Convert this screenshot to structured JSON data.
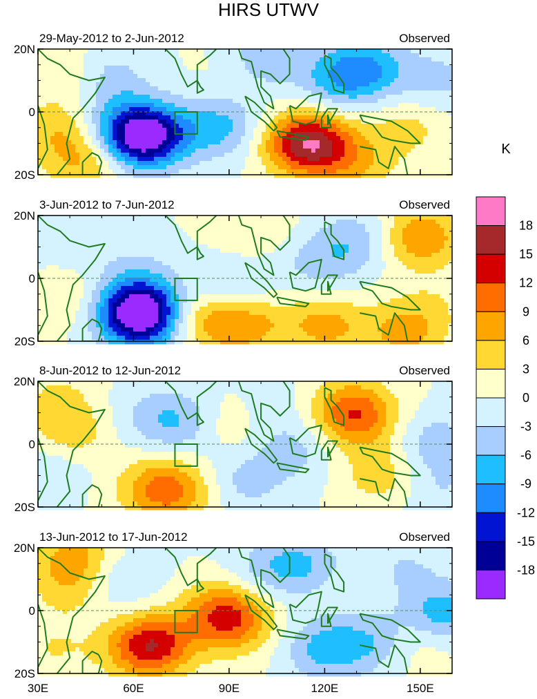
{
  "title": "HIRS UTWV",
  "units_label": "K",
  "panels": [
    {
      "date_label": "29-May-2012 to 2-Jun-2012",
      "type_label": "Observed",
      "blobs": [
        {
          "lon": 40,
          "lat": 12,
          "v": 4
        },
        {
          "lon": 36,
          "lat": -6,
          "v": 5
        },
        {
          "lon": 45,
          "lat": -16,
          "v": 6
        },
        {
          "lon": 54,
          "lat": -2,
          "v": -2
        },
        {
          "lon": 51,
          "lat": 11,
          "v": -5
        },
        {
          "lon": 63,
          "lat": -7,
          "v": -9
        },
        {
          "lon": 63,
          "lat": -8,
          "v": -14
        },
        {
          "lon": 87,
          "lat": -5,
          "v": -7
        },
        {
          "lon": 93,
          "lat": 15,
          "v": 2
        },
        {
          "lon": 100,
          "lat": 17,
          "v": -6
        },
        {
          "lon": 118,
          "lat": -10,
          "v": 9
        },
        {
          "lon": 112,
          "lat": -10,
          "v": 10
        },
        {
          "lon": 133,
          "lat": 14,
          "v": -8
        },
        {
          "lon": 124,
          "lat": 10,
          "v": -6
        },
        {
          "lon": 146,
          "lat": -5,
          "v": 4
        },
        {
          "lon": 155,
          "lat": 10,
          "v": -4
        },
        {
          "lon": 130,
          "lat": -17,
          "v": 5
        }
      ]
    },
    {
      "date_label": "3-Jun-2012 to 7-Jun-2012",
      "type_label": "Observed",
      "blobs": [
        {
          "lon": 38,
          "lat": 12,
          "v": -2
        },
        {
          "lon": 60,
          "lat": 2,
          "v": -3
        },
        {
          "lon": 62,
          "lat": -10,
          "v": -10
        },
        {
          "lon": 62,
          "lat": -12,
          "v": -15
        },
        {
          "lon": 82,
          "lat": -12,
          "v": 7
        },
        {
          "lon": 95,
          "lat": -14,
          "v": 8
        },
        {
          "lon": 120,
          "lat": -15,
          "v": 7
        },
        {
          "lon": 145,
          "lat": -17,
          "v": 7
        },
        {
          "lon": 90,
          "lat": -5,
          "v": -6
        },
        {
          "lon": 118,
          "lat": 5,
          "v": -4
        },
        {
          "lon": 130,
          "lat": 12,
          "v": -5
        },
        {
          "lon": 150,
          "lat": 13,
          "v": 9
        },
        {
          "lon": 40,
          "lat": -6,
          "v": 3
        },
        {
          "lon": 98,
          "lat": 17,
          "v": 3
        },
        {
          "lon": 155,
          "lat": -8,
          "v": 2
        }
      ]
    },
    {
      "date_label": "8-Jun-2012 to 12-Jun-2012",
      "type_label": "Observed",
      "blobs": [
        {
          "lon": 40,
          "lat": 4,
          "v": 5
        },
        {
          "lon": 36,
          "lat": 15,
          "v": 3
        },
        {
          "lon": 33,
          "lat": -8,
          "v": -3
        },
        {
          "lon": 62,
          "lat": 10,
          "v": -2
        },
        {
          "lon": 74,
          "lat": 7,
          "v": -6
        },
        {
          "lon": 73,
          "lat": -15,
          "v": 7
        },
        {
          "lon": 66,
          "lat": -14,
          "v": 5
        },
        {
          "lon": 92,
          "lat": 7,
          "v": 4
        },
        {
          "lon": 100,
          "lat": 10,
          "v": -3
        },
        {
          "lon": 110,
          "lat": -2,
          "v": -4
        },
        {
          "lon": 130,
          "lat": 8,
          "v": 8
        },
        {
          "lon": 128,
          "lat": 12,
          "v": 5
        },
        {
          "lon": 95,
          "lat": -12,
          "v": -4
        },
        {
          "lon": 138,
          "lat": -10,
          "v": 5
        },
        {
          "lon": 155,
          "lat": 0,
          "v": -5
        },
        {
          "lon": 155,
          "lat": -15,
          "v": -3
        }
      ]
    },
    {
      "date_label": "13-Jun-2012 to 17-Jun-2012",
      "type_label": "Observed",
      "blobs": [
        {
          "lon": 42,
          "lat": 17,
          "v": 7
        },
        {
          "lon": 40,
          "lat": 7,
          "v": 4
        },
        {
          "lon": 55,
          "lat": 10,
          "v": -4
        },
        {
          "lon": 68,
          "lat": -10,
          "v": 7
        },
        {
          "lon": 63,
          "lat": -12,
          "v": 9
        },
        {
          "lon": 88,
          "lat": 0,
          "v": 9
        },
        {
          "lon": 92,
          "lat": -5,
          "v": 6
        },
        {
          "lon": 100,
          "lat": 12,
          "v": -3
        },
        {
          "lon": 112,
          "lat": 15,
          "v": -6
        },
        {
          "lon": 120,
          "lat": -12,
          "v": -7
        },
        {
          "lon": 135,
          "lat": -10,
          "v": -5
        },
        {
          "lon": 145,
          "lat": 14,
          "v": -3
        },
        {
          "lon": 157,
          "lat": -1,
          "v": -8
        },
        {
          "lon": 150,
          "lat": -10,
          "v": 3
        },
        {
          "lon": 35,
          "lat": -12,
          "v": 3
        }
      ]
    }
  ],
  "map": {
    "lon_min": 30,
    "lon_max": 160,
    "lat_min": -20,
    "lat_max": 20,
    "lon_ticks": [
      30,
      60,
      90,
      120,
      150
    ],
    "lon_tick_labels": [
      "30E",
      "60E",
      "90E",
      "120E",
      "150E"
    ],
    "lat_ticks": [
      20,
      0,
      -20
    ],
    "lat_tick_labels": [
      "20N",
      "0",
      "20S"
    ],
    "study_box": {
      "lon0": 73,
      "lon1": 80,
      "lat0": -7,
      "lat1": 0
    }
  },
  "colorbar": {
    "tick_labels": [
      "18",
      "15",
      "12",
      "9",
      "6",
      "3",
      "0",
      "-3",
      "-6",
      "-9",
      "-12",
      "-15",
      "-18"
    ],
    "colors": [
      "#ff7ac6",
      "#a5282a",
      "#d40000",
      "#ff6d00",
      "#ffa500",
      "#ffd834",
      "#ffffcc",
      "#d4f2ff",
      "#a8cdff",
      "#1ebeff",
      "#1e8cff",
      "#0014d2",
      "#000096",
      "#9a2aff"
    ],
    "levels": [
      18,
      15,
      12,
      9,
      6,
      3,
      0,
      -3,
      -6,
      -9,
      -12,
      -15,
      -18
    ]
  },
  "style": {
    "coast": "#1e7b1e",
    "equator": "#5a8a5a"
  }
}
